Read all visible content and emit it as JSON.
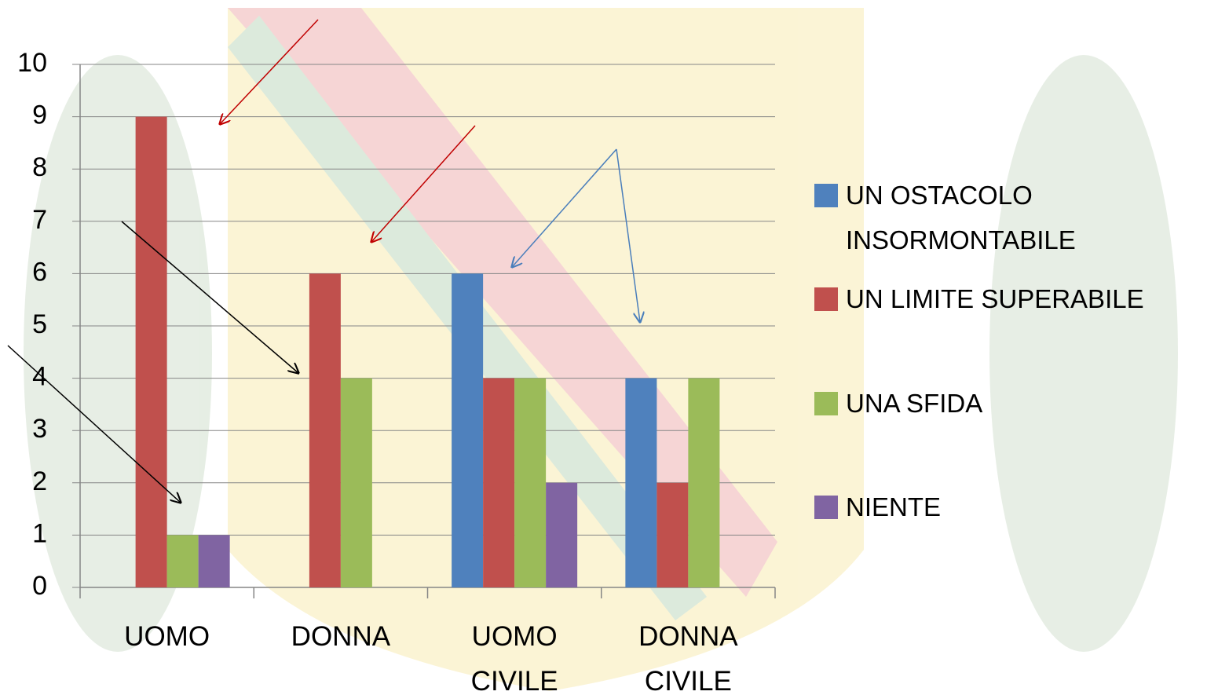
{
  "chart_data": {
    "type": "bar",
    "categories": [
      "UOMO",
      "DONNA",
      "UOMO CIVILE",
      "DONNA CIVILE"
    ],
    "series": [
      {
        "name": "UN OSTACOLO INSORMONTABILE",
        "color": "#4f81bd",
        "values": [
          0,
          0,
          6,
          4
        ]
      },
      {
        "name": "UN LIMITE SUPERABILE",
        "color": "#c0504d",
        "values": [
          9,
          6,
          4,
          2
        ]
      },
      {
        "name": "UNA SFIDA",
        "color": "#9bbb59",
        "values": [
          1,
          4,
          4,
          4
        ]
      },
      {
        "name": "NIENTE",
        "color": "#8064a2",
        "values": [
          1,
          0,
          2,
          0
        ]
      }
    ],
    "ylim": [
      0,
      10
    ],
    "yticks": [
      0,
      1,
      2,
      3,
      4,
      5,
      6,
      7,
      8,
      9,
      10
    ],
    "grid": true,
    "legend": "right"
  }
}
